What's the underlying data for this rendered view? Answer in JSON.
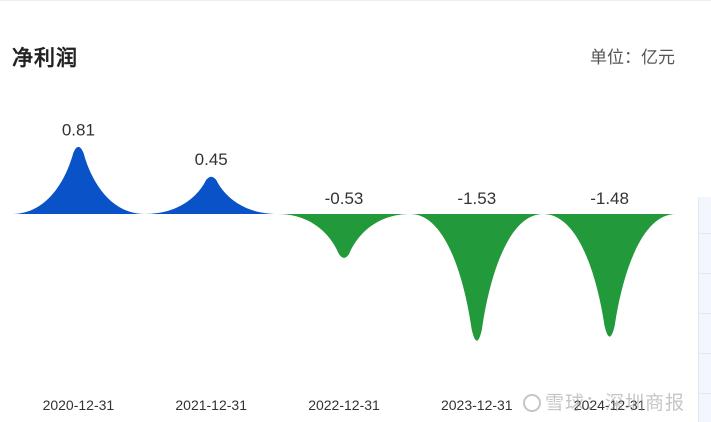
{
  "header": {
    "title": "净利润",
    "unit": "单位：亿元"
  },
  "watermark": {
    "text": "雪球：深圳商报"
  },
  "colors": {
    "positive": "#0a52c8",
    "negative": "#22993a",
    "label": "#333333",
    "axis_label": "#333333"
  },
  "chart_data": {
    "type": "area",
    "categories": [
      "2020-12-31",
      "2021-12-31",
      "2022-12-31",
      "2023-12-31",
      "2024-12-31"
    ],
    "values": [
      0.81,
      0.45,
      -0.53,
      -1.53,
      -1.48
    ],
    "value_labels": [
      "0.81",
      "0.45",
      "-0.53",
      "-1.53",
      "-1.48"
    ],
    "title": "净利润",
    "unit": "单位：亿元",
    "baseline": 0
  }
}
